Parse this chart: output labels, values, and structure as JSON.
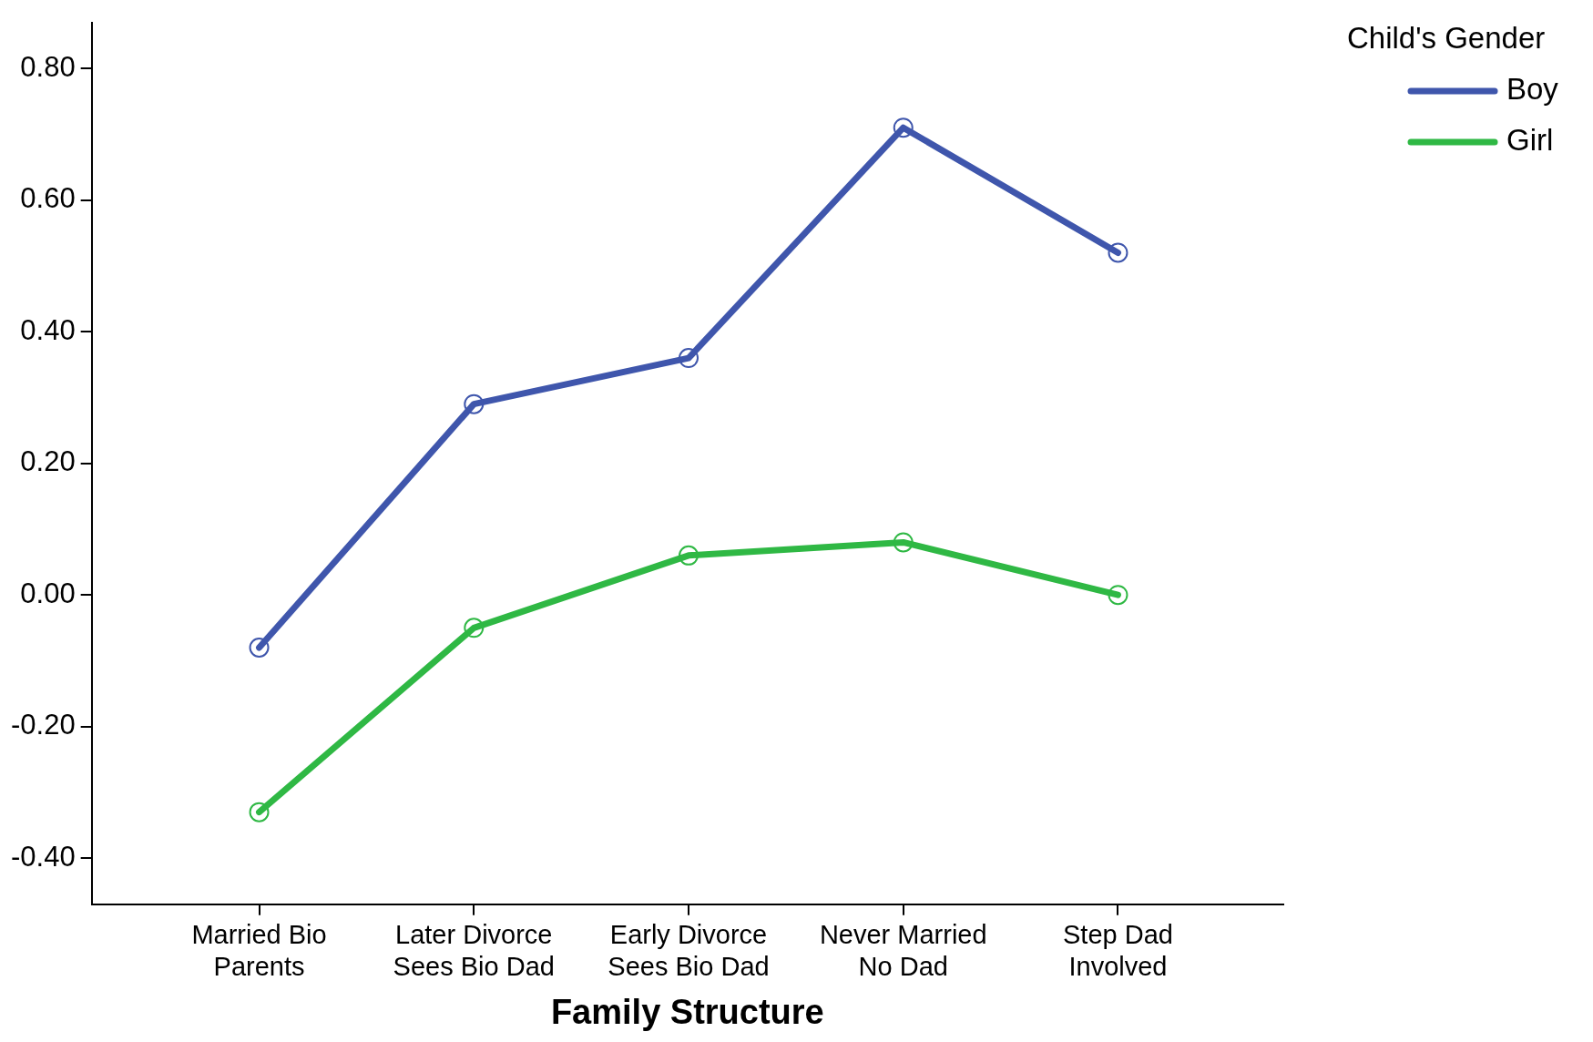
{
  "chart_data": {
    "type": "line",
    "xlabel": "Family Structure",
    "legend_title": "Child's Gender",
    "categories": [
      "Married Bio Parents",
      "Later Divorce Sees Bio Dad",
      "Early Divorce Sees Bio Dad",
      "Never Married No Dad",
      "Step Dad Involved"
    ],
    "series": [
      {
        "name": "Boy",
        "color": "#3f56ac",
        "values": [
          -0.08,
          0.29,
          0.36,
          0.71,
          0.52
        ]
      },
      {
        "name": "Girl",
        "color": "#2fb844",
        "values": [
          -0.33,
          -0.05,
          0.06,
          0.08,
          0.0
        ]
      }
    ],
    "ylim": [
      -0.47,
      0.87
    ],
    "yticks": [
      {
        "value": -0.4,
        "label": "-0.40"
      },
      {
        "value": -0.2,
        "label": "-0.20"
      },
      {
        "value": 0,
        "label": "0.00"
      },
      {
        "value": 0.2,
        "label": "0.20"
      },
      {
        "value": 0.4,
        "label": "0.40"
      },
      {
        "value": 0.6,
        "label": "0.60"
      },
      {
        "value": 0.8,
        "label": "0.80"
      }
    ],
    "grid": false,
    "legend": "top right",
    "marker": "circle",
    "line_style": "solid"
  }
}
